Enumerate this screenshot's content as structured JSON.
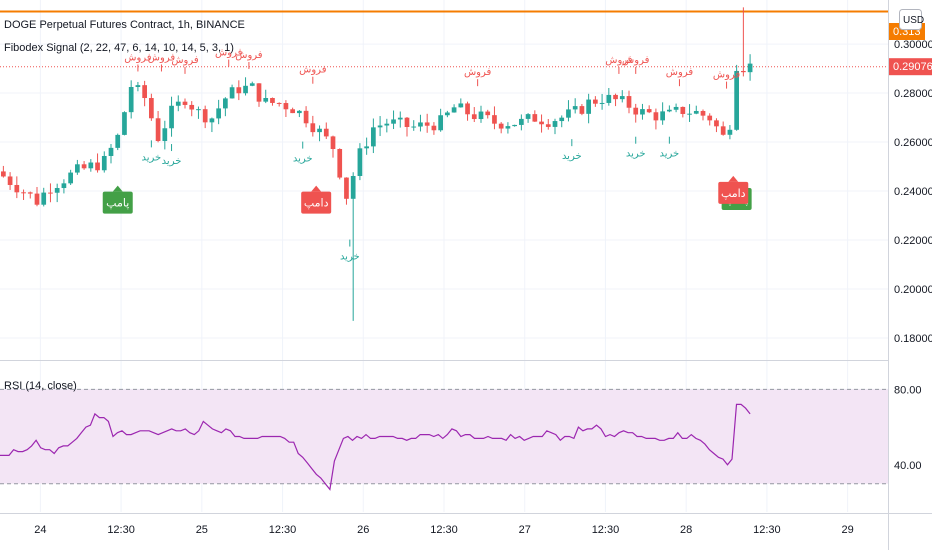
{
  "header": {
    "symbol_title": "DOGE Perpetual Futures Contract, 1h, BINANCE",
    "indicator_title": "Fibodex Signal (2, 22, 47, 6, 14, 10, 14, 5, 3, 1)",
    "rsi_title": "RSI (14, close)",
    "currency_button": "USD"
  },
  "colors": {
    "up": "#26a69a",
    "down": "#ef5350",
    "price_line": "#ef5350",
    "alert_line": "#f57c00",
    "rsi_line": "#9c27b0",
    "rsi_band": "#f3e5f5",
    "buy_text": "#26a69a",
    "sell_text": "#ef5350",
    "pump_badge": "#43a047",
    "dump_badge": "#ef5350"
  },
  "chart_data": {
    "type": "candlestick",
    "price_axis": {
      "ticks": [
        "0.300000",
        "0.280000",
        "0.260000",
        "0.240000",
        "0.220000",
        "0.200000",
        "0.180000"
      ],
      "tick_values": [
        0.3,
        0.28,
        0.26,
        0.24,
        0.22,
        0.2,
        0.18
      ],
      "range": [
        0.171,
        0.318
      ]
    },
    "time_axis": {
      "ticks": [
        "24",
        "12:30",
        "25",
        "12:30",
        "26",
        "12:30",
        "27",
        "12:30",
        "28",
        "12:30",
        "29"
      ],
      "range_hours": [
        -6,
        126
      ]
    },
    "current_price_label": "0.290766",
    "current_price": 0.290766,
    "alert_price": 0.3133,
    "alert_label": "0.313",
    "rsi_axis": {
      "ticks": [
        "80.00",
        "40.00"
      ],
      "tick_values": [
        80,
        40
      ],
      "range": [
        15,
        95
      ],
      "band": [
        30,
        80
      ]
    },
    "rsi_values": [
      45,
      45,
      45,
      48,
      47,
      47,
      48,
      50,
      53,
      49,
      48,
      48,
      46,
      49,
      50,
      50,
      52,
      54,
      57,
      60,
      61,
      67,
      65,
      65,
      63,
      55,
      57,
      58,
      56,
      56,
      57,
      58,
      58,
      58,
      57,
      56,
      57,
      58,
      59,
      58,
      58,
      59,
      57,
      56,
      58,
      63,
      61,
      59,
      58,
      57,
      59,
      58,
      55,
      55,
      54,
      54,
      54,
      54,
      55,
      55,
      55,
      55,
      55,
      54,
      52,
      52,
      46,
      44,
      41,
      38,
      35,
      33,
      30,
      27,
      42,
      48,
      54,
      55,
      53,
      55,
      54,
      56,
      54,
      54,
      55,
      55,
      55,
      55,
      54,
      54,
      53,
      54,
      54,
      56,
      56,
      56,
      55,
      56,
      54,
      56,
      59,
      58,
      55,
      56,
      56,
      54,
      54,
      54,
      55,
      54,
      54,
      54,
      53,
      56,
      54,
      55,
      53,
      54,
      55,
      55,
      55,
      58,
      57,
      56,
      53,
      55,
      55,
      54,
      60,
      58,
      59,
      59,
      61,
      59,
      55,
      56,
      55,
      57,
      58,
      57,
      57,
      55,
      55,
      54,
      54,
      54,
      53,
      53,
      54,
      54,
      57,
      54,
      54,
      56,
      54,
      53,
      51,
      48,
      46,
      44,
      43,
      40,
      43,
      72,
      72,
      70,
      67
    ],
    "signals": [
      {
        "type": "buy",
        "label": "خرید",
        "hour": 16.5,
        "price": 0.2615
      },
      {
        "type": "buy",
        "label": "خرید",
        "hour": 19.5,
        "price": 0.26
      },
      {
        "type": "buy",
        "label": "خرید",
        "hour": 39.0,
        "price": 0.261
      },
      {
        "type": "buy",
        "label": "خرید",
        "hour": 46.0,
        "price": 0.221
      },
      {
        "type": "buy",
        "label": "خرید",
        "hour": 79.0,
        "price": 0.262
      },
      {
        "type": "buy",
        "label": "خرید",
        "hour": 88.5,
        "price": 0.263
      },
      {
        "type": "buy",
        "label": "خرید",
        "hour": 93.5,
        "price": 0.263
      },
      {
        "type": "sell",
        "label": "فروش",
        "hour": 14.5,
        "price": 0.288
      },
      {
        "type": "sell",
        "label": "فروش",
        "hour": 18.0,
        "price": 0.288
      },
      {
        "type": "sell",
        "label": "فروش",
        "hour": 21.5,
        "price": 0.287
      },
      {
        "type": "sell",
        "label": "فروش",
        "hour": 28.0,
        "price": 0.29
      },
      {
        "type": "sell",
        "label": "فروش",
        "hour": 31.0,
        "price": 0.289
      },
      {
        "type": "sell",
        "label": "فروش",
        "hour": 40.5,
        "price": 0.283
      },
      {
        "type": "sell",
        "label": "فروش",
        "hour": 65.0,
        "price": 0.282
      },
      {
        "type": "sell",
        "label": "فروش",
        "hour": 86.0,
        "price": 0.287
      },
      {
        "type": "sell",
        "label": "فروش",
        "hour": 88.5,
        "price": 0.287
      },
      {
        "type": "sell",
        "label": "فروش",
        "hour": 95.0,
        "price": 0.282
      },
      {
        "type": "sell",
        "label": "فروش",
        "hour": 102.0,
        "price": 0.281
      }
    ],
    "badges": [
      {
        "type": "pump",
        "label": "پامپ",
        "hour": 11.5,
        "price": 0.243
      },
      {
        "type": "dump",
        "label": "دامپ",
        "hour": 41.0,
        "price": 0.243
      },
      {
        "type": "pump",
        "label": "پامپ",
        "hour": 103.5,
        "price": 0.2445
      },
      {
        "type": "dump",
        "label": "دامپ",
        "hour": 103.0,
        "price": 0.247
      }
    ]
  }
}
